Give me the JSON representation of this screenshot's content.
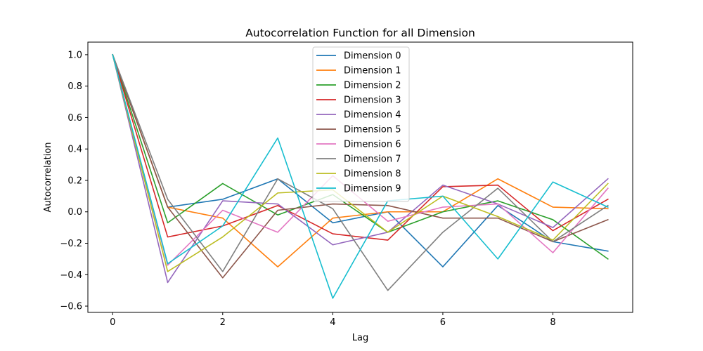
{
  "chart_data": {
    "type": "line",
    "title": "Autocorrelation Function for all Dimension",
    "xlabel": "Lag",
    "ylabel": "Autocorrelation",
    "x": [
      0,
      1,
      2,
      3,
      4,
      5,
      6,
      7,
      8,
      9
    ],
    "xlim": [
      -0.45,
      9.45
    ],
    "ylim": [
      -0.64,
      1.08
    ],
    "xticks": [
      0,
      2,
      4,
      6,
      8
    ],
    "yticks": [
      -0.6,
      -0.4,
      -0.2,
      0.0,
      0.2,
      0.4,
      0.6,
      0.8,
      1.0
    ],
    "xtick_labels": [
      "0",
      "2",
      "4",
      "6",
      "8"
    ],
    "ytick_labels": [
      "−0.6",
      "−0.4",
      "−0.2",
      "0.0",
      "0.2",
      "0.4",
      "0.6",
      "0.8",
      "1.0"
    ],
    "grid": false,
    "legend_position": "top-center",
    "series": [
      {
        "name": "Dimension 0",
        "color": "#1f77b4",
        "values": [
          1.0,
          0.03,
          0.08,
          0.21,
          -0.07,
          0.0,
          -0.35,
          0.04,
          -0.19,
          -0.25
        ]
      },
      {
        "name": "Dimension 1",
        "color": "#ff7f0e",
        "values": [
          1.0,
          0.03,
          -0.04,
          -0.35,
          -0.04,
          0.0,
          0.0,
          0.21,
          0.03,
          0.02
        ]
      },
      {
        "name": "Dimension 2",
        "color": "#2ca02c",
        "values": [
          1.0,
          -0.07,
          0.18,
          -0.02,
          0.11,
          -0.13,
          0.0,
          0.07,
          -0.05,
          -0.3
        ]
      },
      {
        "name": "Dimension 3",
        "color": "#d62728",
        "values": [
          1.0,
          -0.16,
          -0.09,
          0.04,
          -0.14,
          -0.18,
          0.16,
          0.17,
          -0.12,
          0.08
        ]
      },
      {
        "name": "Dimension 4",
        "color": "#9467bd",
        "values": [
          1.0,
          -0.45,
          0.07,
          0.05,
          -0.21,
          -0.13,
          0.17,
          0.05,
          -0.1,
          0.21
        ]
      },
      {
        "name": "Dimension 5",
        "color": "#8c564b",
        "values": [
          1.0,
          0.03,
          -0.42,
          0.01,
          0.05,
          0.04,
          -0.04,
          -0.04,
          -0.19,
          -0.05
        ]
      },
      {
        "name": "Dimension 6",
        "color": "#e377c2",
        "values": [
          1.0,
          -0.34,
          0.01,
          -0.13,
          0.23,
          -0.06,
          0.03,
          0.05,
          -0.26,
          0.15
        ]
      },
      {
        "name": "Dimension 7",
        "color": "#7f7f7f",
        "values": [
          1.0,
          0.08,
          -0.38,
          0.21,
          0.02,
          -0.5,
          -0.13,
          0.15,
          -0.19,
          0.04
        ]
      },
      {
        "name": "Dimension 8",
        "color": "#bcbd22",
        "values": [
          1.0,
          -0.38,
          -0.16,
          0.12,
          0.14,
          -0.13,
          0.1,
          -0.03,
          -0.18,
          0.18
        ]
      },
      {
        "name": "Dimension 9",
        "color": "#17becf",
        "values": [
          1.0,
          -0.33,
          -0.09,
          0.47,
          -0.55,
          0.07,
          0.1,
          -0.3,
          0.19,
          0.03
        ]
      }
    ]
  }
}
